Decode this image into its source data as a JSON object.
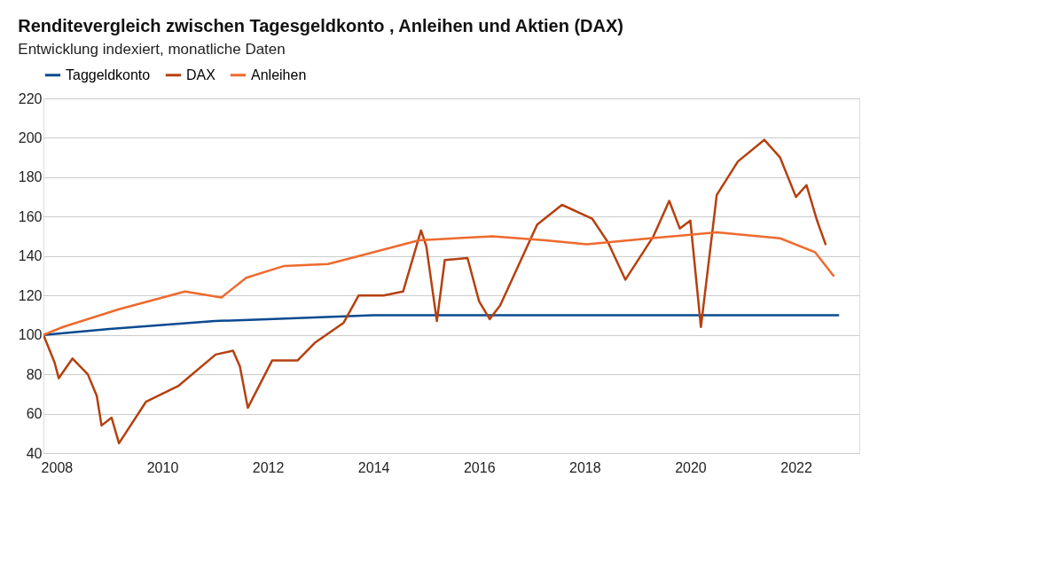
{
  "chart_data": {
    "type": "line",
    "title": "Renditevergleich zwischen Tagesgeldkonto , Anleihen und Aktien (DAX)",
    "subtitle": "Entwicklung indexiert, monatliche Daten",
    "xlim": [
      2007.75,
      2023.2
    ],
    "xticks": [
      2008,
      2010,
      2012,
      2014,
      2016,
      2018,
      2020,
      2022
    ],
    "ylim": [
      40,
      220
    ],
    "yticks": [
      40,
      60,
      80,
      100,
      120,
      140,
      160,
      180,
      200,
      220
    ],
    "grid": "y",
    "legend": "top left",
    "line_style": "solid",
    "marker": "none",
    "series": [
      {
        "name": "Taggeldkonto",
        "color": "#0a4a8f",
        "x": [
          2007.75,
          2009,
          2010,
          2011,
          2012,
          2013,
          2014,
          2018,
          2022.8
        ],
        "values": [
          100,
          103,
          105,
          107,
          108,
          109,
          110,
          110,
          110
        ]
      },
      {
        "name": "DAX",
        "color": "#b5400f",
        "x": [
          2007.75,
          2007.96,
          2008.04,
          2008.3,
          2008.59,
          2008.76,
          2008.85,
          2009.04,
          2009.18,
          2009.69,
          2010.3,
          2011.01,
          2011.34,
          2011.47,
          2011.62,
          2012.08,
          2012.56,
          2012.89,
          2013.43,
          2013.72,
          2014.19,
          2014.56,
          2014.9,
          2015.0,
          2015.2,
          2015.35,
          2015.78,
          2016.0,
          2016.2,
          2016.4,
          2017.1,
          2017.57,
          2018.14,
          2018.44,
          2018.77,
          2019.3,
          2019.6,
          2019.8,
          2020.0,
          2020.2,
          2020.5,
          2020.9,
          2021.4,
          2021.7,
          2022.0,
          2022.2,
          2022.4,
          2022.56
        ],
        "values": [
          100,
          86,
          78,
          88,
          80,
          69,
          54,
          58,
          45,
          66,
          74,
          90,
          92,
          84,
          63,
          87,
          87,
          96,
          106,
          120,
          120,
          122,
          153,
          145,
          107,
          138,
          139,
          117,
          108,
          115,
          156,
          166,
          159,
          147,
          128,
          150,
          168,
          154,
          158,
          104,
          171,
          188,
          199,
          190,
          170,
          176,
          158,
          146
        ]
      },
      {
        "name": "Anleihen",
        "color": "#ee6a2d",
        "x": [
          2007.75,
          2008.12,
          2009.18,
          2010.43,
          2011.12,
          2011.59,
          2012.31,
          2013.14,
          2013.87,
          2014.86,
          2016.25,
          2017.25,
          2018.04,
          2019.24,
          2020.5,
          2021.7,
          2022.36,
          2022.71
        ],
        "values": [
          100,
          104,
          113,
          122,
          119,
          129,
          135,
          136,
          141,
          148,
          150,
          148,
          146,
          149,
          152,
          149,
          142,
          130
        ]
      }
    ]
  }
}
